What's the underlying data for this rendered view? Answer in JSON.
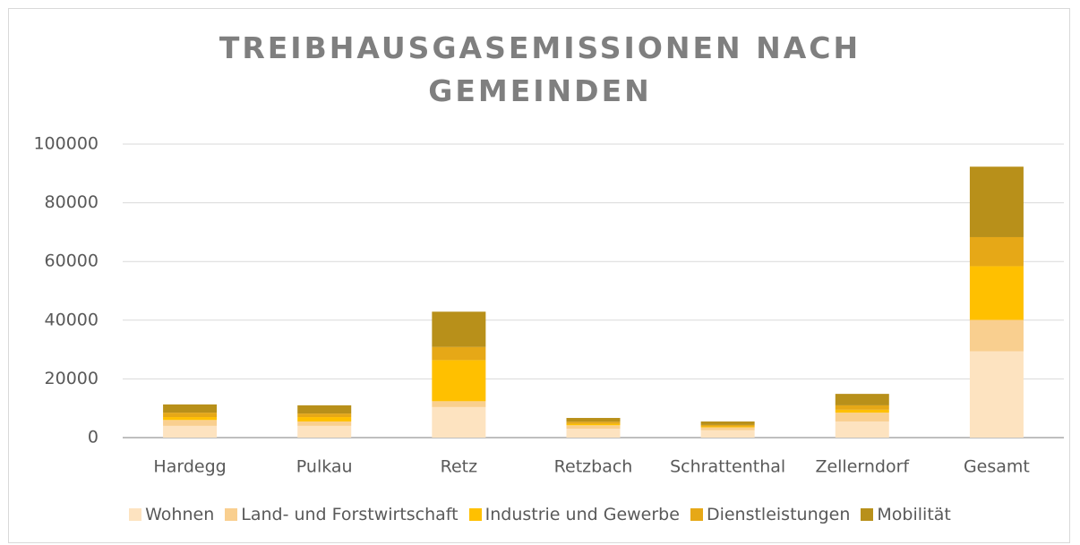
{
  "chart_data": {
    "type": "stacked_bar",
    "title": "TREIBHAUSGASEMISSIONEN NACH GEMEINDEN",
    "categories": [
      "Hardegg",
      "Pulkau",
      "Retz",
      "Retzbach",
      "Schrattenthal",
      "Zellerndorf",
      "Gesamt"
    ],
    "series": [
      {
        "name": "Wohnen",
        "color": "#fde3c0",
        "values": [
          4000,
          4000,
          10400,
          3000,
          2500,
          5500,
          29400
        ]
      },
      {
        "name": "Land- und Forstwirtschaft",
        "color": "#f9cf8f",
        "values": [
          2000,
          1500,
          2000,
          1200,
          1000,
          3000,
          10700
        ]
      },
      {
        "name": "Industrie und Gewerbe",
        "color": "#ffc000",
        "values": [
          1000,
          1500,
          14000,
          500,
          300,
          1000,
          18300
        ]
      },
      {
        "name": "Dienstleistungen",
        "color": "#e6a817",
        "values": [
          1500,
          1200,
          4500,
          700,
          500,
          1500,
          9900
        ]
      },
      {
        "name": "Mobilität",
        "color": "#b8901a",
        "values": [
          2800,
          2800,
          12000,
          1300,
          1200,
          3900,
          24000
        ]
      }
    ],
    "ylim": [
      0,
      100000
    ],
    "yticks": [
      0,
      20000,
      40000,
      60000,
      80000,
      100000
    ],
    "grid": true,
    "legend": "bottom"
  }
}
